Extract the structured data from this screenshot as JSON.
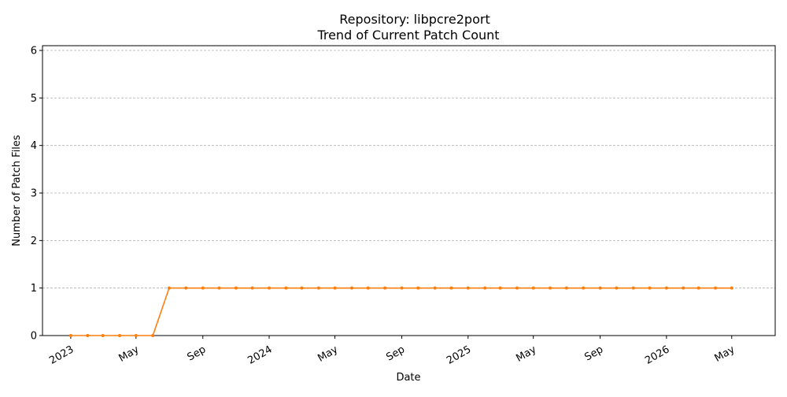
{
  "chart_data": {
    "type": "line",
    "title_line1": "Repository: libpcre2port",
    "title_line2": "Trend of Current Patch Count",
    "xlabel": "Date",
    "ylabel": "Number of Patch Files",
    "x_ticks": [
      {
        "date": "2023-01-01",
        "label": "2023"
      },
      {
        "date": "2023-05-01",
        "label": "May"
      },
      {
        "date": "2023-09-01",
        "label": "Sep"
      },
      {
        "date": "2024-01-01",
        "label": "2024"
      },
      {
        "date": "2024-05-01",
        "label": "May"
      },
      {
        "date": "2024-09-01",
        "label": "Sep"
      },
      {
        "date": "2025-01-01",
        "label": "2025"
      },
      {
        "date": "2025-05-01",
        "label": "May"
      },
      {
        "date": "2025-09-01",
        "label": "Sep"
      },
      {
        "date": "2026-01-01",
        "label": "2026"
      },
      {
        "date": "2026-05-01",
        "label": "May"
      }
    ],
    "y_ticks": [
      0,
      1,
      2,
      3,
      4,
      5,
      6
    ],
    "xlim": [
      "2022-11-10",
      "2026-07-20"
    ],
    "ylim": [
      0,
      6.1
    ],
    "grid": "y-dashed",
    "series": [
      {
        "color": "#ff7f0e",
        "x": [
          "2023-01-01",
          "2023-02-01",
          "2023-03-01",
          "2023-04-01",
          "2023-05-01",
          "2023-06-01",
          "2023-07-01",
          "2023-08-01",
          "2023-09-01",
          "2023-10-01",
          "2023-11-01",
          "2023-12-01",
          "2024-01-01",
          "2024-02-01",
          "2024-03-01",
          "2024-04-01",
          "2024-05-01",
          "2024-06-01",
          "2024-07-01",
          "2024-08-01",
          "2024-09-01",
          "2024-10-01",
          "2024-11-01",
          "2024-12-01",
          "2025-01-01",
          "2025-02-01",
          "2025-03-01",
          "2025-04-01",
          "2025-05-01",
          "2025-06-01",
          "2025-07-01",
          "2025-08-01",
          "2025-09-01",
          "2025-10-01",
          "2025-11-01",
          "2025-12-01",
          "2026-01-01",
          "2026-02-01",
          "2026-03-01",
          "2026-04-01",
          "2026-05-01"
        ],
        "values": [
          0,
          0,
          0,
          0,
          0,
          0,
          1,
          1,
          1,
          1,
          1,
          1,
          1,
          1,
          1,
          1,
          1,
          1,
          1,
          1,
          1,
          1,
          1,
          1,
          1,
          1,
          1,
          1,
          1,
          1,
          1,
          1,
          1,
          1,
          1,
          1,
          1,
          1,
          1,
          1,
          1
        ]
      }
    ]
  }
}
